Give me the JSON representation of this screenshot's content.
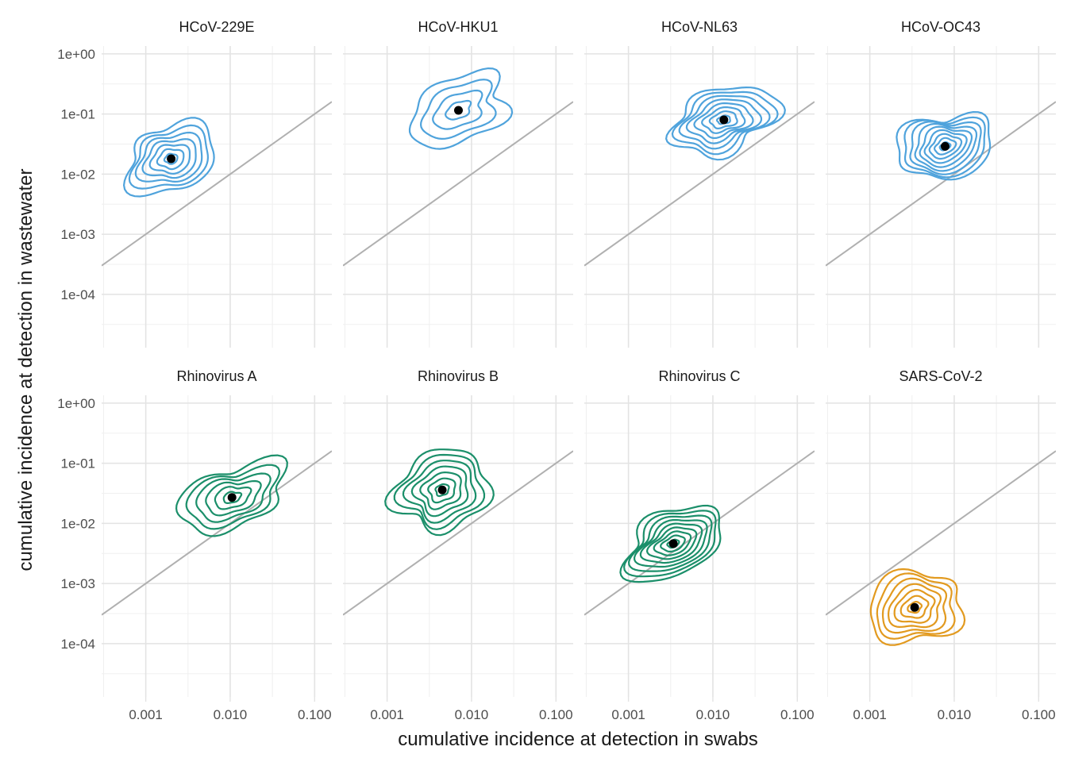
{
  "chart_data": {
    "type": "contour",
    "xlabel": "cumulative incidence at detection in swabs",
    "ylabel": "cumulative incidence at detection in wastewater",
    "x_scale": "log10",
    "y_scale": "log10",
    "xlim": [
      0.0003,
      0.16
    ],
    "ylim": [
      1.3e-05,
      1.35
    ],
    "x_ticks": [
      0.001,
      0.01,
      0.1
    ],
    "x_tick_labels": [
      "0.001",
      "0.010",
      "0.100"
    ],
    "y_ticks": [
      1,
      0.1,
      0.01,
      0.001,
      0.0001
    ],
    "y_tick_labels": [
      "1e+00",
      "1e-01",
      "1e-02",
      "1e-03",
      "1e-04"
    ],
    "reference_line": "y = x",
    "grid": true,
    "colors": {
      "coronavirus": "#4fa3dc",
      "rhinovirus": "#1b8f6a",
      "sars": "#e29a1f",
      "median_point": "#000000",
      "reference": "#b0b0b0"
    },
    "panels": [
      {
        "title": "HCoV-229E",
        "family": "coronavirus",
        "median": [
          0.002,
          0.018
        ],
        "spread_x": 0.5,
        "spread_y": 0.55,
        "levels": 7
      },
      {
        "title": "HCoV-HKU1",
        "family": "coronavirus",
        "median": [
          0.007,
          0.115
        ],
        "spread_x": 0.6,
        "spread_y": 0.5,
        "levels": 4
      },
      {
        "title": "HCoV-NL63",
        "family": "coronavirus",
        "median": [
          0.0135,
          0.08
        ],
        "spread_x": 0.6,
        "spread_y": 0.5,
        "levels": 8
      },
      {
        "title": "HCoV-OC43",
        "family": "coronavirus",
        "median": [
          0.0078,
          0.029
        ],
        "spread_x": 0.55,
        "spread_y": 0.5,
        "levels": 9
      },
      {
        "title": "Rhinovirus A",
        "family": "rhinovirus",
        "median": [
          0.0105,
          0.027
        ],
        "spread_x": 0.6,
        "spread_y": 0.5,
        "levels": 6
      },
      {
        "title": "Rhinovirus B",
        "family": "rhinovirus",
        "median": [
          0.0045,
          0.036
        ],
        "spread_x": 0.55,
        "spread_y": 0.6,
        "levels": 7
      },
      {
        "title": "Rhinovirus C",
        "family": "rhinovirus",
        "median": [
          0.0034,
          0.0046
        ],
        "spread_x": 0.6,
        "spread_y": 0.5,
        "levels": 9
      },
      {
        "title": "SARS-CoV-2",
        "family": "sars",
        "median": [
          0.0034,
          0.0004
        ],
        "spread_x": 0.55,
        "spread_y": 0.55,
        "levels": 7
      }
    ]
  }
}
